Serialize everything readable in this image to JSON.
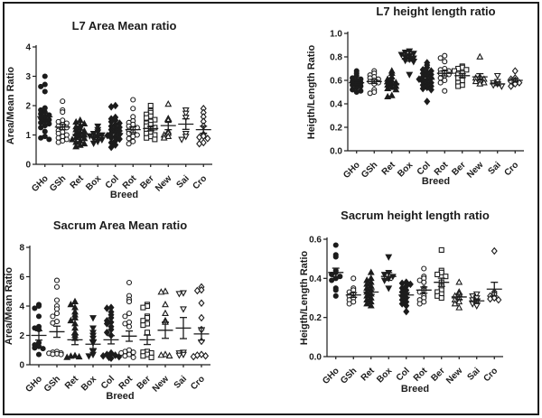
{
  "figure": {
    "background": "#ffffff",
    "ink_color": "#1c1c1c",
    "frame_color": "#1c1c1c"
  },
  "chart_data": [
    {
      "type": "scatter",
      "title": "L7 Area Mean ratio",
      "xlabel": "Breed",
      "ylabel": "Area/Mean Ratio",
      "ylim": [
        0,
        4
      ],
      "yticks": [
        0,
        1,
        2,
        3,
        4
      ],
      "ytick_labels": [
        "0",
        "1",
        "2",
        "3",
        "4"
      ],
      "grid": false,
      "legend": "none",
      "categories": [
        "GHo",
        "GSh",
        "Ret",
        "Box",
        "Col",
        "Rot",
        "Ber",
        "New",
        "Sai",
        "Cro"
      ],
      "series": [
        {
          "name": "GHo",
          "marker": "filled-circle",
          "mean": 1.62,
          "sem": 0.13,
          "values": [
            3.0,
            2.72,
            2.65,
            2.48,
            1.92,
            1.85,
            1.78,
            1.72,
            1.68,
            1.62,
            1.58,
            1.52,
            1.48,
            1.42,
            1.38,
            1.32,
            1.25,
            1.12,
            0.95,
            0.9,
            0.85
          ]
        },
        {
          "name": "GSh",
          "marker": "open-circle",
          "mean": 1.27,
          "sem": 0.09,
          "values": [
            2.15,
            1.85,
            1.78,
            1.5,
            1.45,
            1.4,
            1.35,
            1.3,
            1.25,
            1.2,
            1.15,
            1.1,
            1.05,
            1.0,
            0.95,
            0.9,
            0.85,
            0.8,
            0.75
          ]
        },
        {
          "name": "Ret",
          "marker": "filled-triangle-up",
          "mean": 1.02,
          "sem": 0.06,
          "values": [
            1.5,
            1.44,
            1.38,
            1.33,
            1.28,
            1.23,
            1.18,
            1.13,
            1.08,
            1.04,
            1.0,
            0.96,
            0.92,
            0.88,
            0.84,
            0.8,
            0.75,
            0.7,
            0.65,
            0.6
          ]
        },
        {
          "name": "Box",
          "marker": "filled-triangle-down",
          "mean": 0.96,
          "sem": 0.06,
          "values": [
            1.3,
            1.18,
            1.1,
            1.05,
            1.0,
            0.97,
            0.93,
            0.88,
            0.84,
            0.78,
            0.72
          ]
        },
        {
          "name": "Col",
          "marker": "filled-diamond",
          "mean": 1.05,
          "sem": 0.07,
          "values": [
            2.0,
            1.96,
            1.6,
            1.55,
            1.5,
            1.45,
            1.4,
            1.35,
            1.3,
            1.26,
            1.22,
            1.18,
            1.14,
            1.1,
            1.06,
            1.02,
            0.98,
            0.94,
            0.9,
            0.86,
            0.8,
            0.74,
            0.66,
            0.58
          ]
        },
        {
          "name": "Rot",
          "marker": "open-circle",
          "mean": 1.18,
          "sem": 0.1,
          "values": [
            2.2,
            1.9,
            1.62,
            1.48,
            1.42,
            1.36,
            1.3,
            1.25,
            1.2,
            1.15,
            1.1,
            1.05,
            1.0,
            0.95,
            0.88,
            0.78,
            0.7
          ]
        },
        {
          "name": "Ber",
          "marker": "open-square",
          "mean": 1.22,
          "sem": 0.08,
          "values": [
            2.0,
            1.82,
            1.76,
            1.7,
            1.64,
            1.58,
            1.52,
            1.46,
            1.4,
            1.35,
            1.3,
            1.25,
            1.2,
            1.15,
            1.1,
            1.05,
            1.0,
            0.95,
            0.9,
            0.85
          ]
        },
        {
          "name": "New",
          "marker": "open-triangle-up",
          "mean": 1.32,
          "sem": 0.14,
          "values": [
            2.05,
            1.56,
            1.5,
            1.12,
            1.06,
            1.0,
            0.95,
            0.9
          ]
        },
        {
          "name": "Sai",
          "marker": "open-triangle-down",
          "mean": 1.37,
          "sem": 0.18,
          "values": [
            1.85,
            1.74,
            1.6,
            1.05,
            0.95,
            0.85
          ]
        },
        {
          "name": "Cro",
          "marker": "open-diamond",
          "mean": 1.18,
          "sem": 0.12,
          "values": [
            1.9,
            1.76,
            1.62,
            1.46,
            1.3,
            1.02,
            0.96,
            0.92,
            0.88,
            0.74,
            0.7
          ]
        }
      ]
    },
    {
      "type": "scatter",
      "title": "L7 height length ratio",
      "xlabel": "Breed",
      "ylabel": "Heigth/Length Ratio",
      "ylim": [
        0,
        1.0
      ],
      "yticks": [
        0,
        0.2,
        0.4,
        0.6,
        0.8,
        1.0
      ],
      "ytick_labels": [
        "0.0",
        "0.2",
        "0.4",
        "0.6",
        "0.8",
        "1.0"
      ],
      "grid": false,
      "legend": "none",
      "categories": [
        "GHo",
        "GSh",
        "Ret",
        "Box",
        "Col",
        "Rot",
        "Ber",
        "New",
        "Sai",
        "Cro"
      ],
      "series": [
        {
          "name": "GHo",
          "marker": "filled-circle",
          "mean": 0.58,
          "sem": 0.015,
          "values": [
            0.68,
            0.66,
            0.64,
            0.62,
            0.61,
            0.6,
            0.59,
            0.58,
            0.57,
            0.56,
            0.55,
            0.54,
            0.52,
            0.51,
            0.5
          ]
        },
        {
          "name": "GSh",
          "marker": "open-circle",
          "mean": 0.59,
          "sem": 0.016,
          "values": [
            0.68,
            0.66,
            0.645,
            0.63,
            0.62,
            0.61,
            0.6,
            0.59,
            0.58,
            0.57,
            0.52,
            0.5,
            0.49
          ]
        },
        {
          "name": "Ret",
          "marker": "filled-triangle-up",
          "mean": 0.57,
          "sem": 0.016,
          "values": [
            0.68,
            0.66,
            0.63,
            0.61,
            0.6,
            0.59,
            0.58,
            0.57,
            0.56,
            0.55,
            0.54,
            0.53,
            0.52,
            0.47,
            0.46
          ]
        },
        {
          "name": "Box",
          "marker": "filled-triangle-down",
          "mean": 0.78,
          "sem": 0.017,
          "values": [
            0.85,
            0.84,
            0.83,
            0.82,
            0.81,
            0.8,
            0.79,
            0.78,
            0.77,
            0.76,
            0.65
          ]
        },
        {
          "name": "Col",
          "marker": "filled-diamond",
          "mean": 0.61,
          "sem": 0.016,
          "values": [
            0.75,
            0.73,
            0.71,
            0.69,
            0.68,
            0.67,
            0.66,
            0.65,
            0.64,
            0.63,
            0.62,
            0.61,
            0.6,
            0.59,
            0.58,
            0.57,
            0.56,
            0.55,
            0.54,
            0.53,
            0.52,
            0.42
          ]
        },
        {
          "name": "Rot",
          "marker": "open-circle",
          "mean": 0.66,
          "sem": 0.022,
          "values": [
            0.81,
            0.79,
            0.76,
            0.7,
            0.69,
            0.68,
            0.67,
            0.66,
            0.65,
            0.64,
            0.62,
            0.6,
            0.58,
            0.51
          ]
        },
        {
          "name": "Ber",
          "marker": "open-square",
          "mean": 0.64,
          "sem": 0.016,
          "values": [
            0.72,
            0.71,
            0.7,
            0.69,
            0.68,
            0.66,
            0.65,
            0.64,
            0.62,
            0.6,
            0.58,
            0.56,
            0.55
          ]
        },
        {
          "name": "New",
          "marker": "open-triangle-up",
          "mean": 0.63,
          "sem": 0.027,
          "values": [
            0.8,
            0.63,
            0.62,
            0.61,
            0.6,
            0.59,
            0.58,
            0.57
          ]
        },
        {
          "name": "Sai",
          "marker": "open-triangle-down",
          "mean": 0.57,
          "sem": 0.014,
          "values": [
            0.64,
            0.59,
            0.58,
            0.57,
            0.56,
            0.55
          ]
        },
        {
          "name": "Cro",
          "marker": "open-diamond",
          "mean": 0.6,
          "sem": 0.015,
          "values": [
            0.68,
            0.62,
            0.61,
            0.6,
            0.59,
            0.58,
            0.57,
            0.55
          ]
        }
      ]
    },
    {
      "type": "scatter",
      "title": "Sacrum Area Mean ratio",
      "xlabel": "Breed",
      "ylabel": "Area/Mean Ratio",
      "ylim": [
        0,
        8
      ],
      "yticks": [
        0,
        2,
        4,
        6,
        8
      ],
      "ytick_labels": [
        "0",
        "2",
        "4",
        "6",
        "8"
      ],
      "grid": false,
      "legend": "none",
      "categories": [
        "GHo",
        "GSh",
        "Ret",
        "Box",
        "Col",
        "Rot",
        "Ber",
        "New",
        "Sai",
        "Cro"
      ],
      "series": [
        {
          "name": "GHo",
          "marker": "filled-circle",
          "mean": 2.0,
          "sem": 0.32,
          "values": [
            4.1,
            4.0,
            3.85,
            3.3,
            2.6,
            2.5,
            2.4,
            1.5,
            1.35,
            1.25,
            1.15,
            1.1,
            0.7
          ]
        },
        {
          "name": "GSh",
          "marker": "open-circle",
          "mean": 2.25,
          "sem": 0.38,
          "values": [
            5.75,
            5.3,
            4.4,
            4.0,
            3.8,
            3.5,
            3.3,
            2.95,
            2.85,
            0.9,
            0.85,
            0.8,
            0.78,
            0.75,
            0.72,
            0.7
          ]
        },
        {
          "name": "Ret",
          "marker": "filled-triangle-up",
          "mean": 1.7,
          "sem": 0.33,
          "values": [
            4.3,
            4.1,
            3.9,
            3.6,
            3.4,
            3.2,
            3.0,
            2.8,
            2.5,
            2.2,
            2.0,
            1.8,
            0.62,
            0.58,
            0.54,
            0.5
          ]
        },
        {
          "name": "Box",
          "marker": "filled-triangle-down",
          "mean": 1.4,
          "sem": 0.3,
          "values": [
            3.2,
            2.5,
            2.2,
            2.0,
            1.8,
            1.5,
            0.9,
            0.7,
            0.6
          ]
        },
        {
          "name": "Col",
          "marker": "filled-diamond",
          "mean": 1.7,
          "sem": 0.28,
          "values": [
            3.9,
            3.85,
            3.6,
            3.4,
            3.2,
            3.0,
            2.9,
            2.8,
            2.6,
            2.4,
            2.2,
            2.0,
            0.8,
            0.75,
            0.7,
            0.65,
            0.6,
            0.55,
            0.5,
            0.45
          ]
        },
        {
          "name": "Rot",
          "marker": "open-circle",
          "mean": 1.95,
          "sem": 0.35,
          "values": [
            5.6,
            4.7,
            4.45,
            4.3,
            3.5,
            3.3,
            2.9,
            2.8,
            2.6,
            1.0,
            0.9,
            0.85,
            0.8,
            0.7,
            0.6,
            0.5
          ]
        },
        {
          "name": "Ber",
          "marker": "open-square",
          "mean": 1.7,
          "sem": 0.32,
          "values": [
            4.1,
            4.0,
            3.9,
            3.3,
            3.2,
            3.0,
            2.8,
            2.7,
            2.2,
            0.9,
            0.85,
            0.8,
            0.7,
            0.6,
            0.5
          ]
        },
        {
          "name": "New",
          "marker": "open-triangle-up",
          "mean": 2.35,
          "sem": 0.55,
          "values": [
            5.0,
            4.95,
            4.1,
            3.5,
            3.0,
            2.9,
            0.7,
            0.65,
            0.6
          ]
        },
        {
          "name": "Sai",
          "marker": "open-triangle-down",
          "mean": 2.5,
          "sem": 0.72,
          "values": [
            4.9,
            4.85,
            3.8,
            0.85,
            0.8,
            0.7,
            0.65
          ]
        },
        {
          "name": "Cro",
          "marker": "open-diamond",
          "mean": 2.1,
          "sem": 0.42,
          "values": [
            5.3,
            5.1,
            5.05,
            4.2,
            3.2,
            2.4,
            1.6,
            0.7,
            0.65,
            0.6,
            0.55
          ]
        }
      ]
    },
    {
      "type": "scatter",
      "title": "Sacrum height length ratio",
      "xlabel": "Breed",
      "ylabel": "Heigth/Length Ratio",
      "ylim": [
        0,
        0.6
      ],
      "yticks": [
        0,
        0.2,
        0.4,
        0.6
      ],
      "ytick_labels": [
        "0.0",
        "0.2",
        "0.4",
        "0.6"
      ],
      "grid": false,
      "legend": "none",
      "categories": [
        "GHo",
        "GSh",
        "Ret",
        "Box",
        "Col",
        "Rot",
        "Ber",
        "New",
        "Sai",
        "Cro"
      ],
      "series": [
        {
          "name": "GHo",
          "marker": "filled-circle",
          "mean": 0.43,
          "sem": 0.022,
          "values": [
            0.57,
            0.52,
            0.51,
            0.44,
            0.43,
            0.42,
            0.41,
            0.4,
            0.39,
            0.35,
            0.34,
            0.31
          ]
        },
        {
          "name": "GSh",
          "marker": "open-circle",
          "mean": 0.315,
          "sem": 0.012,
          "values": [
            0.4,
            0.35,
            0.34,
            0.33,
            0.32,
            0.31,
            0.3,
            0.29,
            0.28,
            0.27
          ]
        },
        {
          "name": "Ret",
          "marker": "filled-triangle-up",
          "mean": 0.33,
          "sem": 0.012,
          "values": [
            0.43,
            0.4,
            0.39,
            0.38,
            0.37,
            0.36,
            0.35,
            0.34,
            0.33,
            0.32,
            0.31,
            0.3,
            0.29,
            0.28,
            0.27,
            0.26
          ]
        },
        {
          "name": "Box",
          "marker": "filled-triangle-down",
          "mean": 0.41,
          "sem": 0.02,
          "values": [
            0.51,
            0.43,
            0.42,
            0.41,
            0.4,
            0.39,
            0.35
          ]
        },
        {
          "name": "Col",
          "marker": "filled-diamond",
          "mean": 0.315,
          "sem": 0.012,
          "values": [
            0.38,
            0.375,
            0.37,
            0.36,
            0.35,
            0.34,
            0.33,
            0.32,
            0.31,
            0.3,
            0.29,
            0.28,
            0.27,
            0.26,
            0.23
          ]
        },
        {
          "name": "Rot",
          "marker": "open-circle",
          "mean": 0.34,
          "sem": 0.016,
          "values": [
            0.45,
            0.41,
            0.4,
            0.39,
            0.38,
            0.35,
            0.34,
            0.33,
            0.31,
            0.3,
            0.29,
            0.28,
            0.27
          ]
        },
        {
          "name": "Ber",
          "marker": "open-square",
          "mean": 0.38,
          "sem": 0.021,
          "values": [
            0.545,
            0.44,
            0.43,
            0.42,
            0.41,
            0.38,
            0.36,
            0.34,
            0.33,
            0.32,
            0.31,
            0.3
          ]
        },
        {
          "name": "New",
          "marker": "open-triangle-up",
          "mean": 0.305,
          "sem": 0.013,
          "values": [
            0.38,
            0.33,
            0.32,
            0.31,
            0.3,
            0.29,
            0.28,
            0.27,
            0.25
          ]
        },
        {
          "name": "Sai",
          "marker": "open-triangle-down",
          "mean": 0.285,
          "sem": 0.01,
          "values": [
            0.32,
            0.31,
            0.3,
            0.29,
            0.28,
            0.27,
            0.26
          ]
        },
        {
          "name": "Cro",
          "marker": "open-diamond",
          "mean": 0.345,
          "sem": 0.035,
          "values": [
            0.54,
            0.33,
            0.32,
            0.31,
            0.3,
            0.295,
            0.29
          ]
        }
      ]
    }
  ]
}
